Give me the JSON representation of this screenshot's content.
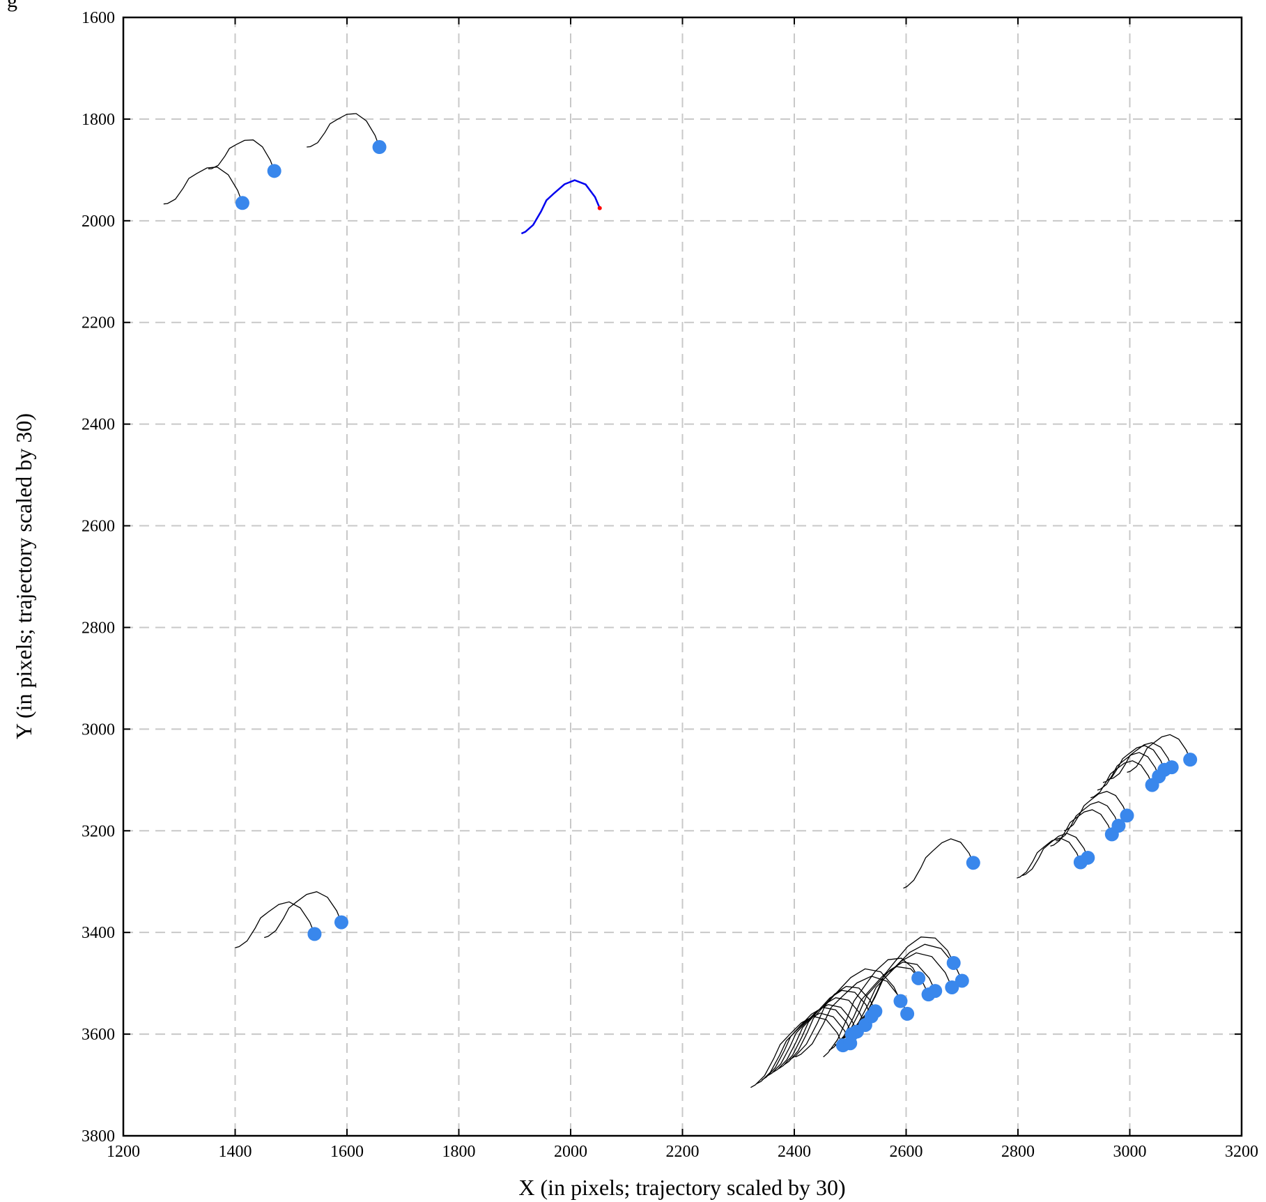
{
  "chart_data": {
    "type": "line",
    "title": "g",
    "xlabel": "X (in pixels; trajectory scaled by 30)",
    "ylabel": "Y (in pixels; trajectory scaled by 30)",
    "xlim": [
      1200,
      3200
    ],
    "ylim": [
      1600,
      3800
    ],
    "y_inverted": true,
    "x_ticks": [
      1200,
      1400,
      1600,
      1800,
      2000,
      2200,
      2400,
      2600,
      2800,
      3000,
      3200
    ],
    "y_ticks": [
      1600,
      1800,
      2000,
      2200,
      2400,
      2600,
      2800,
      3000,
      3200,
      3400,
      3600,
      3800
    ],
    "grid": true,
    "colors": {
      "trajectory": "#000000",
      "highlight": "#0000ee",
      "endpoint": "#3987ec",
      "highlight_end": "#ff0000"
    },
    "trajectories": [
      {
        "start": [
          1272,
          1967
        ],
        "end": [
          1413,
          1965
        ]
      },
      {
        "start": [
          1352,
          1898
        ],
        "end": [
          1470,
          1902
        ]
      },
      {
        "start": [
          1528,
          1855
        ],
        "end": [
          1658,
          1855
        ]
      },
      {
        "start": [
          1400,
          3430
        ],
        "end": [
          1542,
          3403
        ]
      },
      {
        "start": [
          1452,
          3410
        ],
        "end": [
          1590,
          3380
        ]
      },
      {
        "start": [
          2595,
          3313
        ],
        "end": [
          2720,
          3263
        ]
      },
      {
        "start": [
          2798,
          3293
        ],
        "end": [
          2912,
          3262
        ]
      },
      {
        "start": [
          2808,
          3288
        ],
        "end": [
          2925,
          3253
        ]
      },
      {
        "start": [
          2858,
          3230
        ],
        "end": [
          2968,
          3207
        ]
      },
      {
        "start": [
          2868,
          3220
        ],
        "end": [
          2980,
          3190
        ]
      },
      {
        "start": [
          2882,
          3200
        ],
        "end": [
          2995,
          3170
        ]
      },
      {
        "start": [
          2930,
          3135
        ],
        "end": [
          3040,
          3110
        ]
      },
      {
        "start": [
          2942,
          3120
        ],
        "end": [
          3052,
          3093
        ]
      },
      {
        "start": [
          2952,
          3105
        ],
        "end": [
          3062,
          3080
        ]
      },
      {
        "start": [
          2965,
          3098
        ],
        "end": [
          3075,
          3075
        ]
      },
      {
        "start": [
          2995,
          3085
        ],
        "end": [
          3108,
          3060
        ]
      },
      {
        "start": [
          2322,
          3705
        ],
        "end": [
          2487,
          3622
        ]
      },
      {
        "start": [
          2332,
          3698
        ],
        "end": [
          2500,
          3618
        ]
      },
      {
        "start": [
          2342,
          3690
        ],
        "end": [
          2503,
          3600
        ]
      },
      {
        "start": [
          2352,
          3682
        ],
        "end": [
          2512,
          3595
        ]
      },
      {
        "start": [
          2362,
          3675
        ],
        "end": [
          2527,
          3582
        ]
      },
      {
        "start": [
          2372,
          3668
        ],
        "end": [
          2538,
          3565
        ]
      },
      {
        "start": [
          2382,
          3660
        ],
        "end": [
          2545,
          3555
        ]
      },
      {
        "start": [
          2392,
          3650
        ],
        "end": [
          2590,
          3535
        ]
      },
      {
        "start": [
          2402,
          3645
        ],
        "end": [
          2602,
          3560
        ]
      },
      {
        "start": [
          2452,
          3645
        ],
        "end": [
          2622,
          3490
        ]
      },
      {
        "start": [
          2462,
          3632
        ],
        "end": [
          2640,
          3522
        ]
      },
      {
        "start": [
          2472,
          3622
        ],
        "end": [
          2652,
          3515
        ]
      },
      {
        "start": [
          2482,
          3612
        ],
        "end": [
          2682,
          3508
        ]
      },
      {
        "start": [
          2492,
          3600
        ],
        "end": [
          2700,
          3495
        ]
      },
      {
        "start": [
          2502,
          3590
        ],
        "end": [
          2685,
          3460
        ]
      }
    ],
    "highlighted": {
      "start": [
        1912,
        2025
      ],
      "end": [
        2052,
        1975
      ]
    }
  }
}
